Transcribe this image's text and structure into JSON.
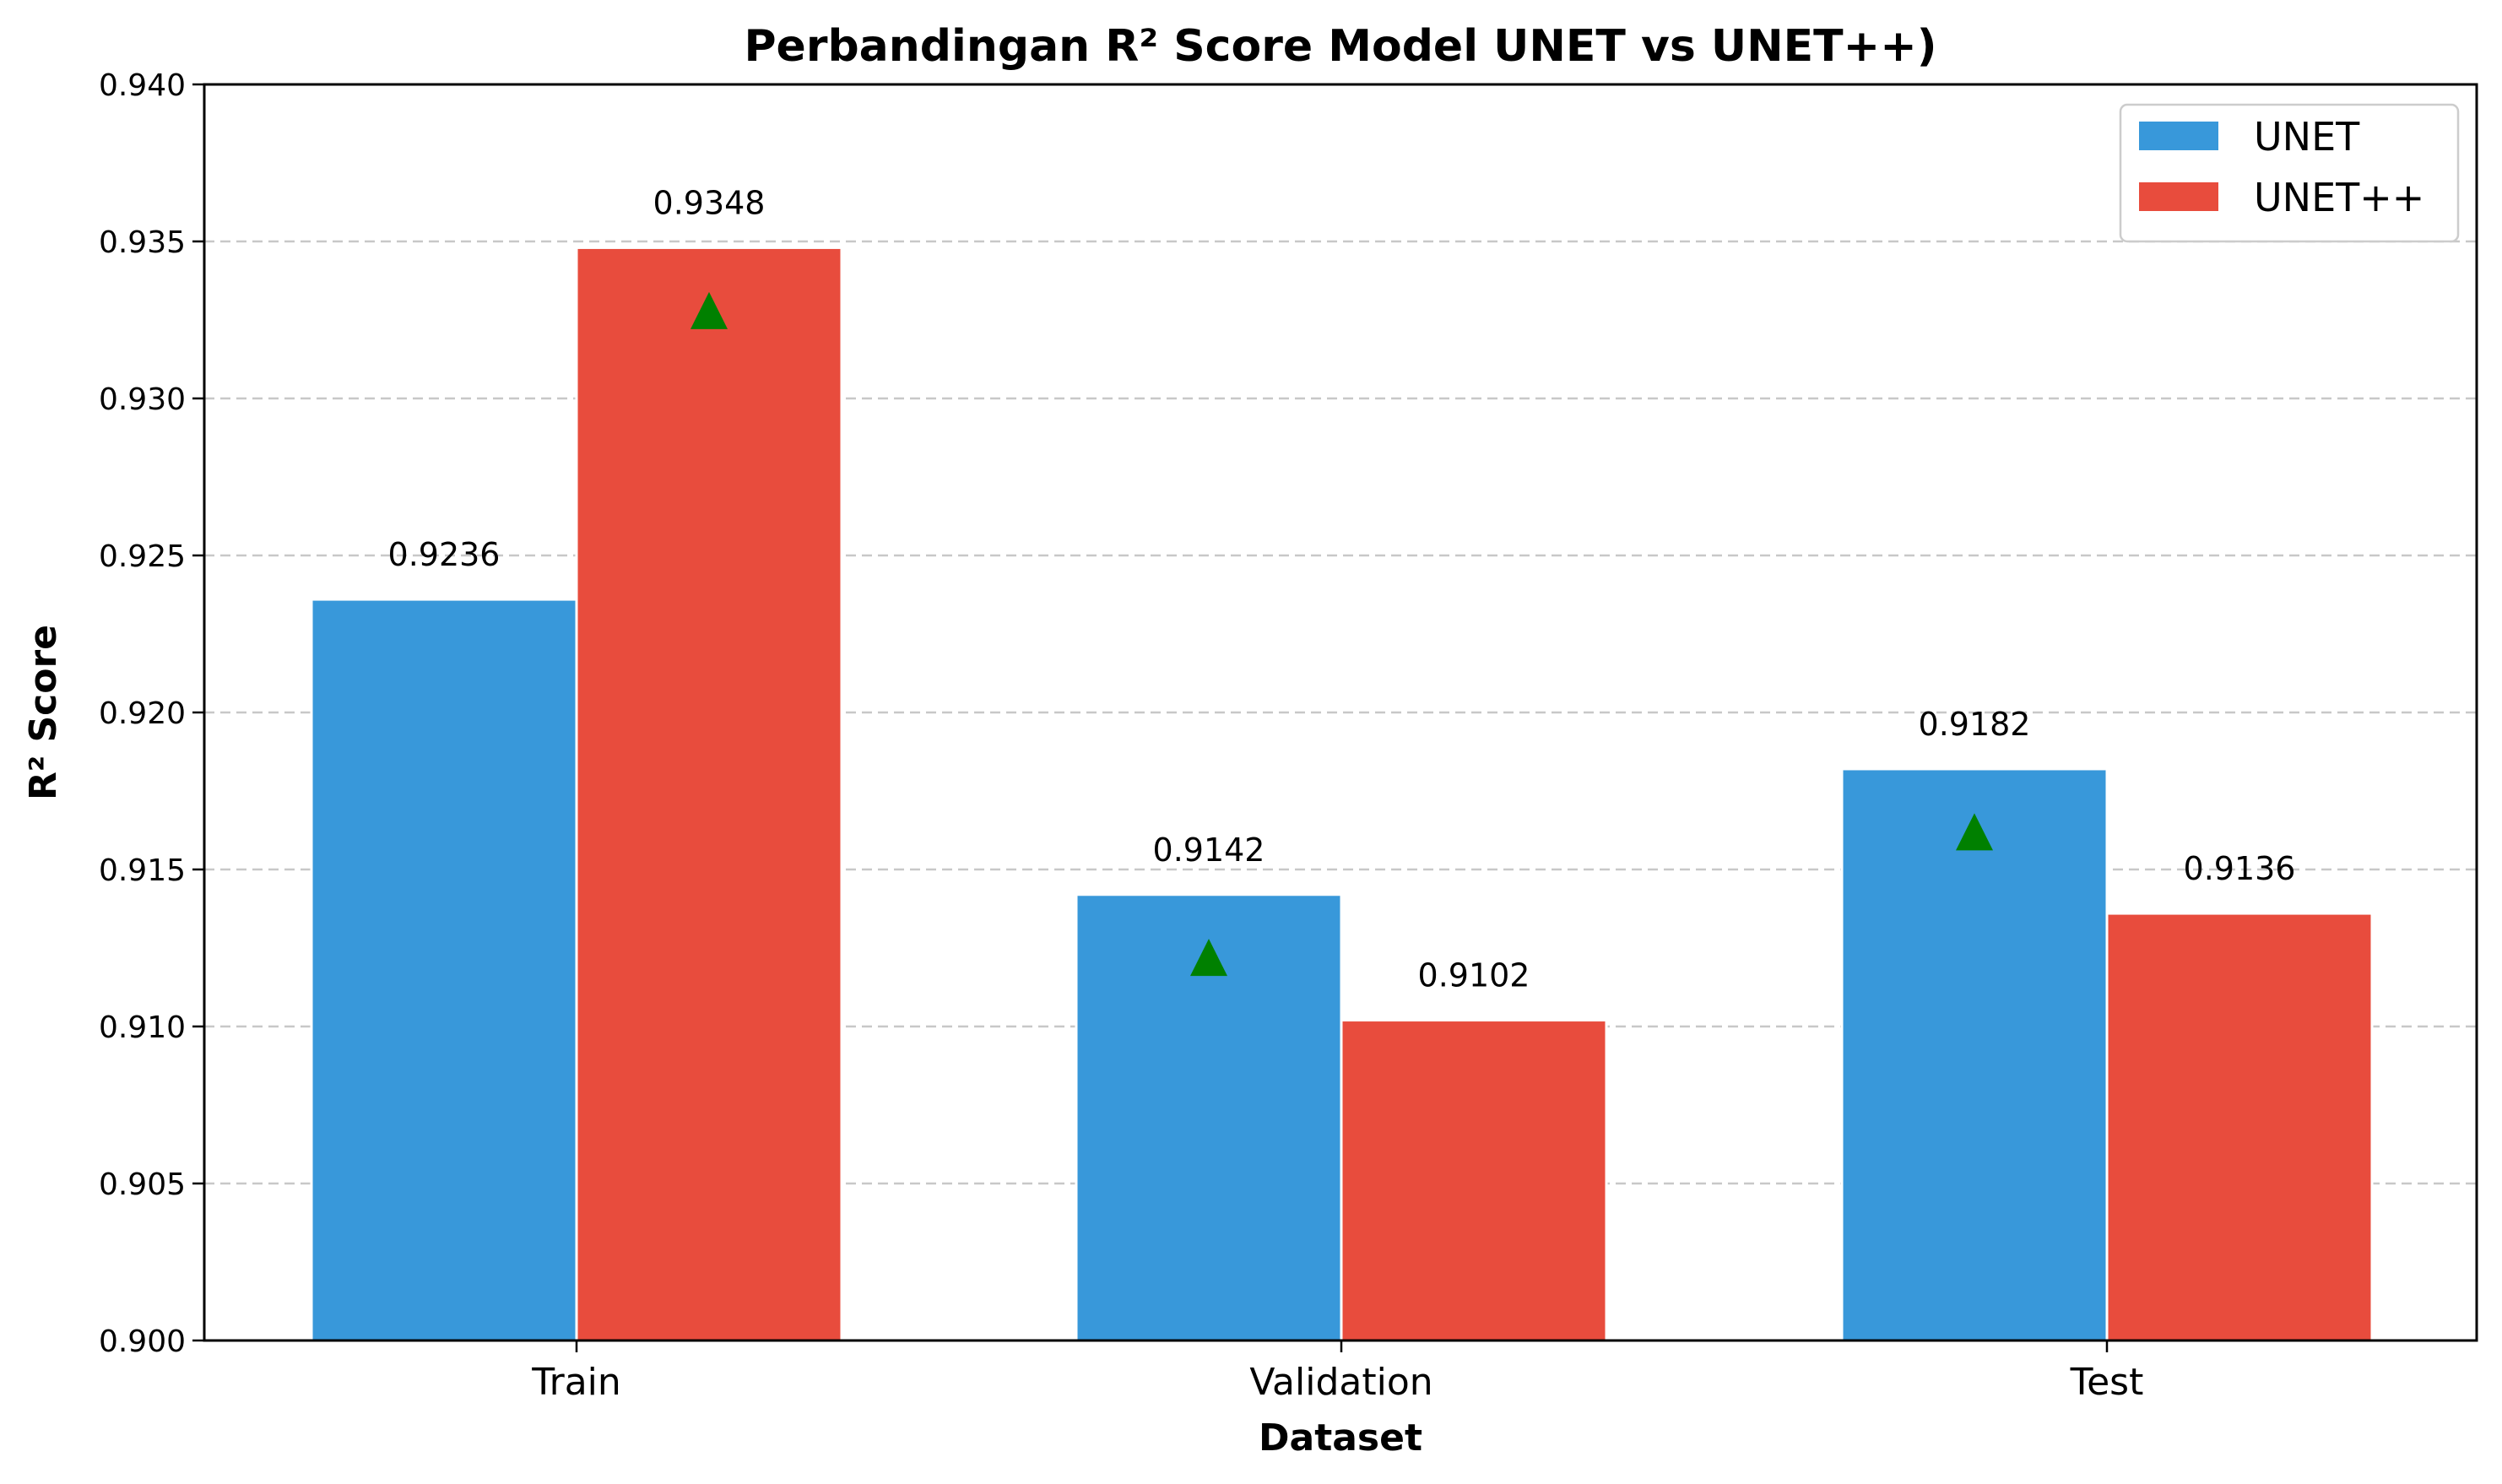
{
  "chart_data": {
    "type": "bar",
    "title": "Perbandingan R² Score Model UNET vs UNET++)",
    "xlabel": "Dataset",
    "ylabel": "R² Score",
    "categories": [
      "Train",
      "Validation",
      "Test"
    ],
    "series": [
      {
        "name": "UNET",
        "color": "#3898da",
        "values": [
          0.9236,
          0.9142,
          0.9182
        ],
        "labels": [
          "0.9236",
          "0.9142",
          "0.9182"
        ]
      },
      {
        "name": "UNET++",
        "color": "#e84c3d",
        "values": [
          0.9348,
          0.9102,
          0.9136
        ],
        "labels": [
          "0.9348",
          "0.9102",
          "0.9136"
        ]
      }
    ],
    "ylim": [
      0.9,
      0.94
    ],
    "yticks": [
      "0.900",
      "0.905",
      "0.910",
      "0.915",
      "0.920",
      "0.925",
      "0.930",
      "0.935",
      "0.940"
    ],
    "grid": "y-dashed",
    "legend_position": "top-right",
    "markers": {
      "shape": "triangle-up",
      "color": "#008000",
      "points": [
        {
          "category": "Train",
          "series": "UNET++",
          "y": 0.9328
        },
        {
          "category": "Validation",
          "series": "UNET",
          "y": 0.9122
        },
        {
          "category": "Test",
          "series": "UNET",
          "y": 0.9162
        }
      ]
    }
  }
}
